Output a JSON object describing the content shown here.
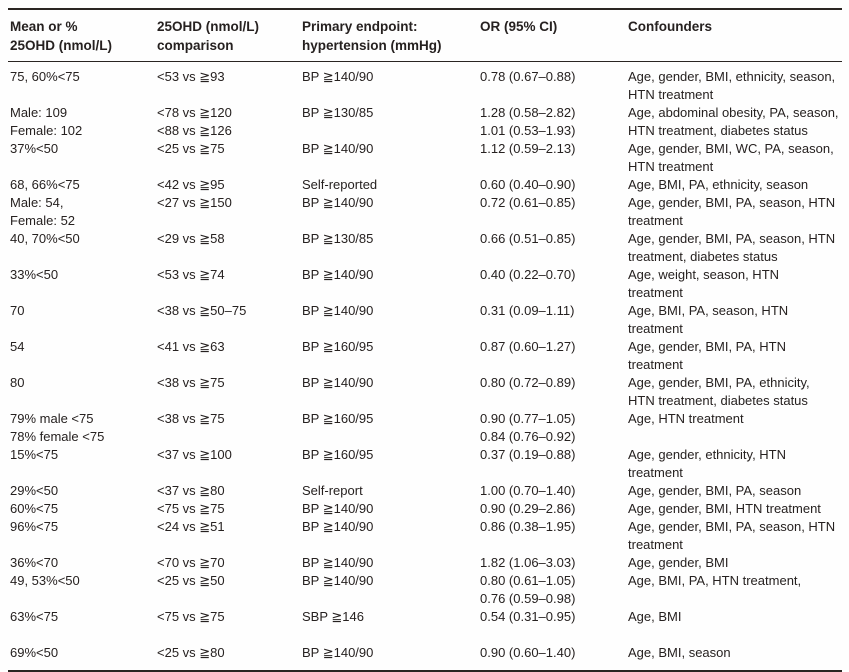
{
  "table": {
    "colors": {
      "text": "#262120",
      "rule": "#2a2522",
      "background": "#fefefe"
    },
    "columns": [
      {
        "line1": "Mean or %",
        "line2": "25OHD (nmol/L)"
      },
      {
        "line1": "25OHD (nmol/L)",
        "line2": "comparison"
      },
      {
        "line1": "Primary endpoint:",
        "line2": "hypertension (mmHg)"
      },
      {
        "line1": "OR (95% CI)",
        "line2": ""
      },
      {
        "line1": "Confounders",
        "line2": ""
      }
    ],
    "rows": [
      {
        "cells": [
          [
            "75, 60%<75"
          ],
          [
            "<53 vs ≧93"
          ],
          [
            "BP ≧140/90"
          ],
          [
            "0.78 (0.67–0.88)"
          ],
          [
            "Age, gender, BMI, ethnicity, season,",
            "HTN treatment"
          ]
        ]
      },
      {
        "cells": [
          [
            "Male: 109",
            "Female: 102"
          ],
          [
            "<78 vs ≧120",
            "<88 vs ≧126"
          ],
          [
            "BP ≧130/85"
          ],
          [
            "1.28 (0.58–2.82)",
            "1.01 (0.53–1.93)"
          ],
          [
            "Age, abdominal obesity, PA, season,",
            "HTN treatment, diabetes status"
          ]
        ]
      },
      {
        "cells": [
          [
            "37%<50"
          ],
          [
            "<25 vs ≧75"
          ],
          [
            "BP ≧140/90"
          ],
          [
            "1.12 (0.59–2.13)"
          ],
          [
            "Age, gender, BMI, WC, PA, season,",
            "HTN treatment"
          ]
        ]
      },
      {
        "cells": [
          [
            "68, 66%<75"
          ],
          [
            "<42 vs ≧95"
          ],
          [
            "Self-reported"
          ],
          [
            "0.60 (0.40–0.90)"
          ],
          [
            "Age, BMI, PA, ethnicity, season"
          ]
        ]
      },
      {
        "cells": [
          [
            "Male: 54,",
            "Female: 52"
          ],
          [
            "<27 vs ≧150"
          ],
          [
            "BP ≧140/90"
          ],
          [
            "0.72 (0.61–0.85)"
          ],
          [
            "Age, gender, BMI, PA, season, HTN",
            "treatment"
          ]
        ]
      },
      {
        "cells": [
          [
            "40, 70%<50"
          ],
          [
            "<29 vs ≧58"
          ],
          [
            "BP ≧130/85"
          ],
          [
            "0.66 (0.51–0.85)"
          ],
          [
            "Age, gender, BMI, PA, season, HTN",
            "treatment, diabetes status"
          ]
        ]
      },
      {
        "cells": [
          [
            "33%<50"
          ],
          [
            "<53 vs ≧74"
          ],
          [
            "BP ≧140/90"
          ],
          [
            "0.40 (0.22–0.70)"
          ],
          [
            "Age, weight, season, HTN",
            "treatment"
          ]
        ]
      },
      {
        "cells": [
          [
            "70"
          ],
          [
            "<38 vs ≧50–75"
          ],
          [
            "BP ≧140/90"
          ],
          [
            "0.31 (0.09–1.11)"
          ],
          [
            "Age, BMI, PA, season, HTN",
            "treatment"
          ]
        ]
      },
      {
        "cells": [
          [
            "54"
          ],
          [
            "<41 vs ≧63"
          ],
          [
            "BP ≧160/95"
          ],
          [
            "0.87 (0.60–1.27)"
          ],
          [
            "Age, gender, BMI, PA, HTN",
            "treatment"
          ]
        ]
      },
      {
        "cells": [
          [
            "80"
          ],
          [
            "<38 vs ≧75"
          ],
          [
            "BP ≧140/90"
          ],
          [
            "0.80 (0.72–0.89)"
          ],
          [
            "Age, gender, BMI, PA, ethnicity,",
            "HTN treatment, diabetes status"
          ]
        ]
      },
      {
        "cells": [
          [
            "79% male <75",
            "78% female <75"
          ],
          [
            "<38 vs ≧75"
          ],
          [
            "BP ≧160/95"
          ],
          [
            "0.90 (0.77–1.05)",
            "0.84 (0.76–0.92)"
          ],
          [
            "Age, HTN treatment"
          ]
        ]
      },
      {
        "cells": [
          [
            "15%<75"
          ],
          [
            "<37 vs ≧100"
          ],
          [
            "BP ≧160/95"
          ],
          [
            "0.37 (0.19–0.88)"
          ],
          [
            "Age, gender, ethnicity, HTN",
            "treatment"
          ]
        ]
      },
      {
        "cells": [
          [
            "29%<50"
          ],
          [
            "<37 vs ≧80"
          ],
          [
            "Self-report"
          ],
          [
            "1.00 (0.70–1.40)"
          ],
          [
            "Age, gender, BMI, PA, season"
          ]
        ]
      },
      {
        "cells": [
          [
            "60%<75"
          ],
          [
            "<75 vs ≧75"
          ],
          [
            "BP ≧140/90"
          ],
          [
            "0.90 (0.29–2.86)"
          ],
          [
            "Age, gender, BMI, HTN treatment"
          ]
        ]
      },
      {
        "cells": [
          [
            "96%<75"
          ],
          [
            "<24 vs ≧51"
          ],
          [
            "BP ≧140/90"
          ],
          [
            "0.86 (0.38–1.95)"
          ],
          [
            "Age, gender, BMI, PA, season, HTN",
            "treatment"
          ]
        ]
      },
      {
        "cells": [
          [
            "36%<70"
          ],
          [
            "<70 vs ≧70"
          ],
          [
            "BP ≧140/90"
          ],
          [
            "1.82 (1.06–3.03)"
          ],
          [
            "Age, gender, BMI"
          ]
        ]
      },
      {
        "cells": [
          [
            "49, 53%<50"
          ],
          [
            "<25 vs ≧50"
          ],
          [
            "BP ≧140/90"
          ],
          [
            "0.80 (0.61–1.05)",
            "0.76 (0.59–0.98)"
          ],
          [
            "Age, BMI, PA, HTN treatment,"
          ]
        ]
      },
      {
        "cells": [
          [
            "63%<75"
          ],
          [
            "<75 vs ≧75"
          ],
          [
            "SBP ≧146"
          ],
          [
            "0.54 (0.31–0.95)"
          ],
          [
            "Age, BMI"
          ]
        ],
        "extra_space": true
      },
      {
        "cells": [
          [
            "69%<50"
          ],
          [
            "<25 vs ≧80"
          ],
          [
            "BP ≧140/90"
          ],
          [
            "0.90 (0.60–1.40)"
          ],
          [
            "Age, BMI, season"
          ]
        ]
      }
    ]
  }
}
